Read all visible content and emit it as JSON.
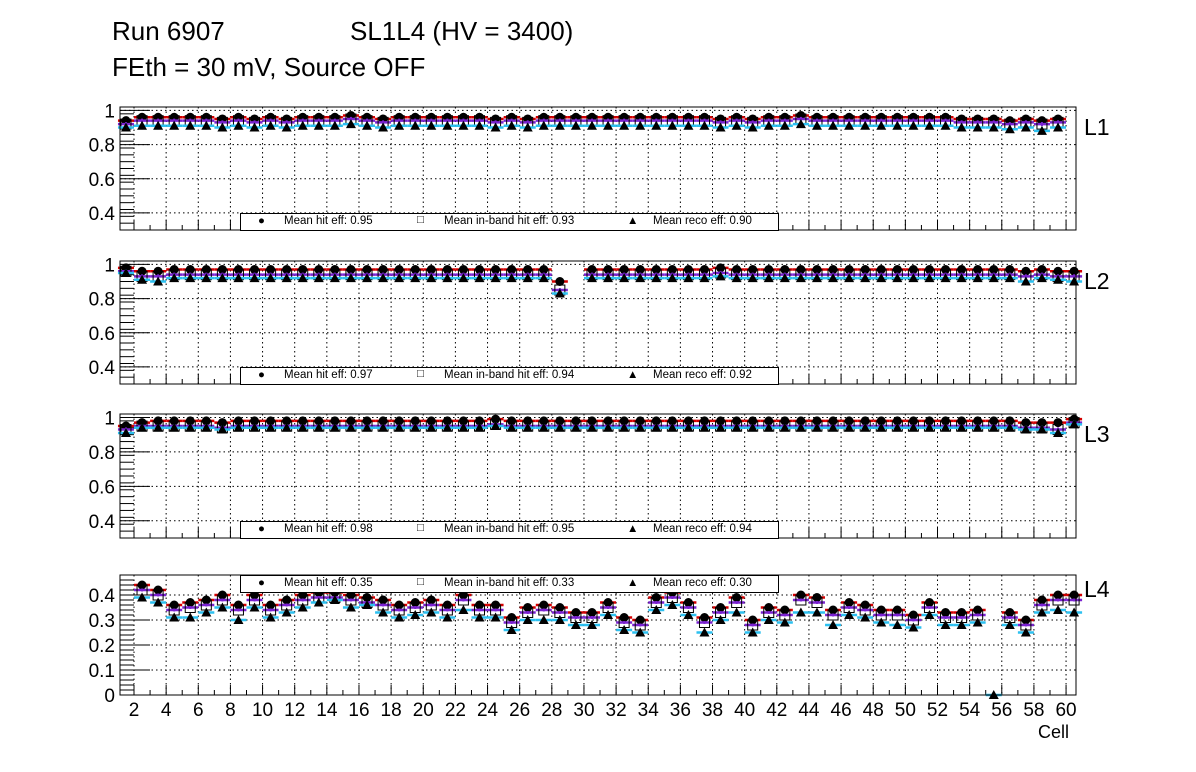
{
  "title": {
    "run": "Run 6907",
    "chamber": "SL1L4 (HV = 3400)",
    "conditions": "FEth = 30 mV, Source OFF"
  },
  "colors": {
    "hit": "#d40000",
    "inband": "#7a22d0",
    "reco": "#2cc0f0",
    "marker": "#000000"
  },
  "chart_data": [
    {
      "type": "scatter",
      "panel": "L1",
      "xlabel": "",
      "ylim": [
        0.3,
        1.02
      ],
      "yticks": [
        0.4,
        0.6,
        0.8,
        1
      ],
      "yticklabels": [
        "0.4",
        "0.6",
        "0.8",
        "1"
      ],
      "legend": {
        "hit": "Mean hit  eff: 0.95",
        "inband": "Mean in-band hit eff: 0.93",
        "reco": "Mean reco eff: 0.90"
      },
      "series": [
        {
          "name": "hit",
          "values": [
            0.94,
            0.96,
            0.96,
            0.96,
            0.96,
            0.96,
            0.95,
            0.96,
            0.95,
            0.96,
            0.95,
            0.96,
            0.96,
            0.96,
            0.97,
            0.96,
            0.95,
            0.96,
            0.96,
            0.96,
            0.96,
            0.96,
            0.96,
            0.95,
            0.96,
            0.95,
            0.96,
            0.96,
            0.96,
            0.96,
            0.96,
            0.96,
            0.96,
            0.96,
            0.96,
            0.96,
            0.96,
            0.95,
            0.96,
            0.95,
            0.96,
            0.96,
            0.97,
            0.96,
            0.96,
            0.96,
            0.96,
            0.96,
            0.96,
            0.96,
            0.96,
            0.96,
            0.95,
            0.95,
            0.95,
            0.94,
            0.95,
            0.94,
            0.95,
            null
          ]
        },
        {
          "name": "inband",
          "values": [
            0.92,
            0.94,
            0.94,
            0.94,
            0.94,
            0.94,
            0.93,
            0.94,
            0.93,
            0.94,
            0.93,
            0.94,
            0.94,
            0.94,
            0.95,
            0.94,
            0.93,
            0.94,
            0.94,
            0.94,
            0.94,
            0.94,
            0.94,
            0.93,
            0.94,
            0.93,
            0.94,
            0.94,
            0.94,
            0.94,
            0.94,
            0.94,
            0.94,
            0.94,
            0.94,
            0.94,
            0.94,
            0.93,
            0.94,
            0.93,
            0.94,
            0.94,
            0.95,
            0.94,
            0.94,
            0.94,
            0.94,
            0.94,
            0.94,
            0.94,
            0.94,
            0.94,
            0.93,
            0.93,
            0.93,
            0.92,
            0.93,
            0.92,
            0.93,
            null
          ]
        },
        {
          "name": "reco",
          "values": [
            0.9,
            0.91,
            0.91,
            0.91,
            0.91,
            0.91,
            0.9,
            0.91,
            0.9,
            0.91,
            0.9,
            0.91,
            0.91,
            0.91,
            0.92,
            0.91,
            0.9,
            0.91,
            0.91,
            0.91,
            0.91,
            0.91,
            0.91,
            0.9,
            0.91,
            0.9,
            0.91,
            0.91,
            0.91,
            0.91,
            0.91,
            0.91,
            0.91,
            0.91,
            0.91,
            0.91,
            0.91,
            0.9,
            0.91,
            0.9,
            0.91,
            0.91,
            0.92,
            0.91,
            0.91,
            0.91,
            0.91,
            0.91,
            0.91,
            0.91,
            0.91,
            0.91,
            0.9,
            0.9,
            0.9,
            0.89,
            0.9,
            0.88,
            0.9,
            null
          ]
        }
      ]
    },
    {
      "type": "scatter",
      "panel": "L2",
      "xlabel": "",
      "ylim": [
        0.3,
        1.02
      ],
      "yticks": [
        0.4,
        0.6,
        0.8,
        1
      ],
      "yticklabels": [
        "0.4",
        "0.6",
        "0.8",
        "1"
      ],
      "legend": {
        "hit": "Mean hit  eff: 0.97",
        "inband": "Mean in-band hit eff: 0.94",
        "reco": "Mean reco eff: 0.92"
      },
      "series": [
        {
          "name": "hit",
          "values": [
            0.98,
            0.96,
            0.96,
            0.97,
            0.97,
            0.97,
            0.97,
            0.97,
            0.97,
            0.97,
            0.97,
            0.97,
            0.97,
            0.97,
            0.97,
            0.97,
            0.97,
            0.97,
            0.97,
            0.97,
            0.97,
            0.97,
            0.97,
            0.97,
            0.97,
            0.97,
            0.97,
            0.9,
            null,
            0.97,
            0.97,
            0.97,
            0.97,
            0.97,
            0.97,
            0.97,
            0.97,
            0.98,
            0.97,
            0.97,
            0.97,
            0.97,
            0.97,
            0.97,
            0.97,
            0.97,
            0.97,
            0.97,
            0.97,
            0.97,
            0.97,
            0.97,
            0.97,
            0.97,
            0.97,
            0.97,
            0.96,
            0.97,
            0.96,
            0.96
          ]
        },
        {
          "name": "inband",
          "values": [
            0.96,
            0.93,
            0.93,
            0.94,
            0.94,
            0.94,
            0.94,
            0.94,
            0.94,
            0.94,
            0.94,
            0.94,
            0.94,
            0.94,
            0.94,
            0.94,
            0.94,
            0.94,
            0.94,
            0.94,
            0.94,
            0.94,
            0.94,
            0.94,
            0.94,
            0.94,
            0.94,
            0.85,
            null,
            0.94,
            0.94,
            0.94,
            0.94,
            0.94,
            0.94,
            0.94,
            0.94,
            0.95,
            0.94,
            0.94,
            0.94,
            0.94,
            0.94,
            0.94,
            0.94,
            0.94,
            0.94,
            0.94,
            0.94,
            0.94,
            0.94,
            0.94,
            0.94,
            0.94,
            0.94,
            0.94,
            0.93,
            0.94,
            0.93,
            0.93
          ]
        },
        {
          "name": "reco",
          "values": [
            0.95,
            0.91,
            0.9,
            0.92,
            0.92,
            0.92,
            0.92,
            0.92,
            0.92,
            0.92,
            0.92,
            0.92,
            0.92,
            0.92,
            0.92,
            0.92,
            0.92,
            0.92,
            0.92,
            0.92,
            0.92,
            0.92,
            0.92,
            0.92,
            0.92,
            0.92,
            0.92,
            0.83,
            null,
            0.92,
            0.92,
            0.92,
            0.92,
            0.92,
            0.92,
            0.92,
            0.92,
            0.93,
            0.92,
            0.92,
            0.92,
            0.92,
            0.92,
            0.92,
            0.92,
            0.92,
            0.92,
            0.92,
            0.92,
            0.92,
            0.92,
            0.92,
            0.92,
            0.92,
            0.92,
            0.92,
            0.9,
            0.92,
            0.91,
            0.9
          ]
        }
      ]
    },
    {
      "type": "scatter",
      "panel": "L3",
      "xlabel": "",
      "ylim": [
        0.3,
        1.02
      ],
      "yticks": [
        0.4,
        0.6,
        0.8,
        1
      ],
      "yticklabels": [
        "0.4",
        "0.6",
        "0.8",
        "1"
      ],
      "legend": {
        "hit": "Mean hit  eff: 0.98",
        "inband": "Mean in-band hit eff: 0.95",
        "reco": "Mean reco eff: 0.94"
      },
      "series": [
        {
          "name": "hit",
          "values": [
            0.95,
            0.97,
            0.98,
            0.98,
            0.98,
            0.98,
            0.97,
            0.98,
            0.98,
            0.98,
            0.98,
            0.98,
            0.98,
            0.98,
            0.98,
            0.98,
            0.98,
            0.98,
            0.98,
            0.98,
            0.98,
            0.98,
            0.98,
            0.99,
            0.98,
            0.98,
            0.98,
            0.98,
            0.98,
            0.98,
            0.98,
            0.98,
            0.98,
            0.98,
            0.98,
            0.98,
            0.98,
            0.98,
            0.98,
            0.98,
            0.98,
            0.98,
            0.98,
            0.98,
            0.98,
            0.98,
            0.98,
            0.98,
            0.98,
            0.98,
            0.98,
            0.98,
            0.98,
            0.98,
            0.98,
            0.98,
            0.97,
            0.97,
            0.97,
            0.99
          ]
        },
        {
          "name": "inband",
          "values": [
            0.93,
            0.95,
            0.95,
            0.95,
            0.95,
            0.95,
            0.94,
            0.95,
            0.95,
            0.95,
            0.95,
            0.95,
            0.95,
            0.95,
            0.95,
            0.95,
            0.95,
            0.95,
            0.95,
            0.95,
            0.95,
            0.95,
            0.95,
            0.96,
            0.95,
            0.95,
            0.95,
            0.95,
            0.95,
            0.95,
            0.95,
            0.95,
            0.95,
            0.95,
            0.95,
            0.95,
            0.95,
            0.95,
            0.95,
            0.95,
            0.95,
            0.95,
            0.95,
            0.95,
            0.95,
            0.95,
            0.95,
            0.95,
            0.95,
            0.95,
            0.95,
            0.95,
            0.95,
            0.95,
            0.95,
            0.95,
            0.94,
            0.94,
            0.93,
            0.97
          ]
        },
        {
          "name": "reco",
          "values": [
            0.91,
            0.94,
            0.94,
            0.94,
            0.94,
            0.94,
            0.93,
            0.94,
            0.94,
            0.94,
            0.94,
            0.94,
            0.94,
            0.94,
            0.94,
            0.94,
            0.94,
            0.94,
            0.94,
            0.94,
            0.94,
            0.94,
            0.94,
            0.95,
            0.94,
            0.94,
            0.94,
            0.94,
            0.94,
            0.94,
            0.94,
            0.94,
            0.94,
            0.94,
            0.94,
            0.94,
            0.94,
            0.94,
            0.94,
            0.94,
            0.94,
            0.94,
            0.94,
            0.94,
            0.94,
            0.94,
            0.94,
            0.94,
            0.94,
            0.94,
            0.94,
            0.94,
            0.94,
            0.94,
            0.94,
            0.94,
            0.93,
            0.93,
            0.91,
            0.96
          ]
        }
      ]
    },
    {
      "type": "scatter",
      "panel": "L4",
      "xlabel": "Cell",
      "ylim": [
        0,
        0.48
      ],
      "yticks": [
        0,
        0.1,
        0.2,
        0.3,
        0.4
      ],
      "yticklabels": [
        "0",
        "0.1",
        "0.2",
        "0.3",
        "0.4"
      ],
      "legend": {
        "hit": "Mean hit  eff: 0.35",
        "inband": "Mean in-band hit eff: 0.33",
        "reco": "Mean reco eff: 0.30"
      },
      "series": [
        {
          "name": "hit",
          "values": [
            null,
            0.44,
            0.42,
            0.36,
            0.37,
            0.38,
            0.4,
            0.36,
            0.4,
            0.36,
            0.38,
            0.4,
            0.41,
            0.41,
            0.4,
            0.39,
            0.38,
            0.36,
            0.37,
            0.38,
            0.36,
            0.4,
            0.36,
            0.36,
            0.31,
            0.35,
            0.36,
            0.35,
            0.33,
            0.33,
            0.37,
            0.31,
            0.3,
            0.39,
            0.41,
            0.37,
            0.31,
            0.35,
            0.39,
            0.3,
            0.35,
            0.34,
            0.4,
            0.39,
            0.34,
            0.37,
            0.36,
            0.34,
            0.34,
            0.32,
            0.37,
            0.33,
            0.33,
            0.34,
            null,
            0.33,
            0.3,
            0.38,
            0.4,
            0.4
          ]
        },
        {
          "name": "inband",
          "values": [
            null,
            0.42,
            0.4,
            0.34,
            0.35,
            0.36,
            0.38,
            0.34,
            0.38,
            0.34,
            0.36,
            0.38,
            0.39,
            0.39,
            0.38,
            0.37,
            0.36,
            0.34,
            0.35,
            0.36,
            0.34,
            0.38,
            0.34,
            0.34,
            0.29,
            0.33,
            0.34,
            0.33,
            0.31,
            0.31,
            0.35,
            0.29,
            0.28,
            0.37,
            0.39,
            0.35,
            0.29,
            0.33,
            0.37,
            0.28,
            0.33,
            0.32,
            0.38,
            0.37,
            0.32,
            0.35,
            0.34,
            0.32,
            0.32,
            0.3,
            0.35,
            0.31,
            0.31,
            0.32,
            null,
            0.31,
            0.28,
            0.36,
            0.38,
            0.38
          ]
        },
        {
          "name": "reco",
          "values": [
            null,
            0.39,
            0.37,
            0.31,
            0.31,
            0.33,
            0.35,
            0.3,
            0.35,
            0.31,
            0.33,
            0.35,
            0.37,
            0.38,
            0.35,
            0.36,
            0.33,
            0.31,
            0.32,
            0.33,
            0.31,
            0.34,
            0.31,
            0.31,
            0.26,
            0.3,
            0.3,
            0.3,
            0.28,
            0.28,
            0.32,
            0.26,
            0.25,
            0.34,
            0.36,
            0.32,
            0.25,
            0.3,
            0.33,
            0.25,
            0.3,
            0.29,
            0.33,
            0.33,
            0.28,
            0.32,
            0.31,
            0.29,
            0.28,
            0.27,
            0.32,
            0.28,
            0.28,
            0.29,
            0.0,
            0.28,
            0.25,
            0.33,
            0.34,
            0.33
          ]
        }
      ]
    }
  ],
  "x_axis": {
    "cells_first": 1,
    "cells_last": 60,
    "tick_labels": [
      "2",
      "4",
      "6",
      "8",
      "10",
      "12",
      "14",
      "16",
      "18",
      "20",
      "22",
      "24",
      "26",
      "28",
      "30",
      "32",
      "34",
      "36",
      "38",
      "40",
      "42",
      "44",
      "46",
      "48",
      "50",
      "52",
      "54",
      "56",
      "58",
      "60"
    ]
  }
}
